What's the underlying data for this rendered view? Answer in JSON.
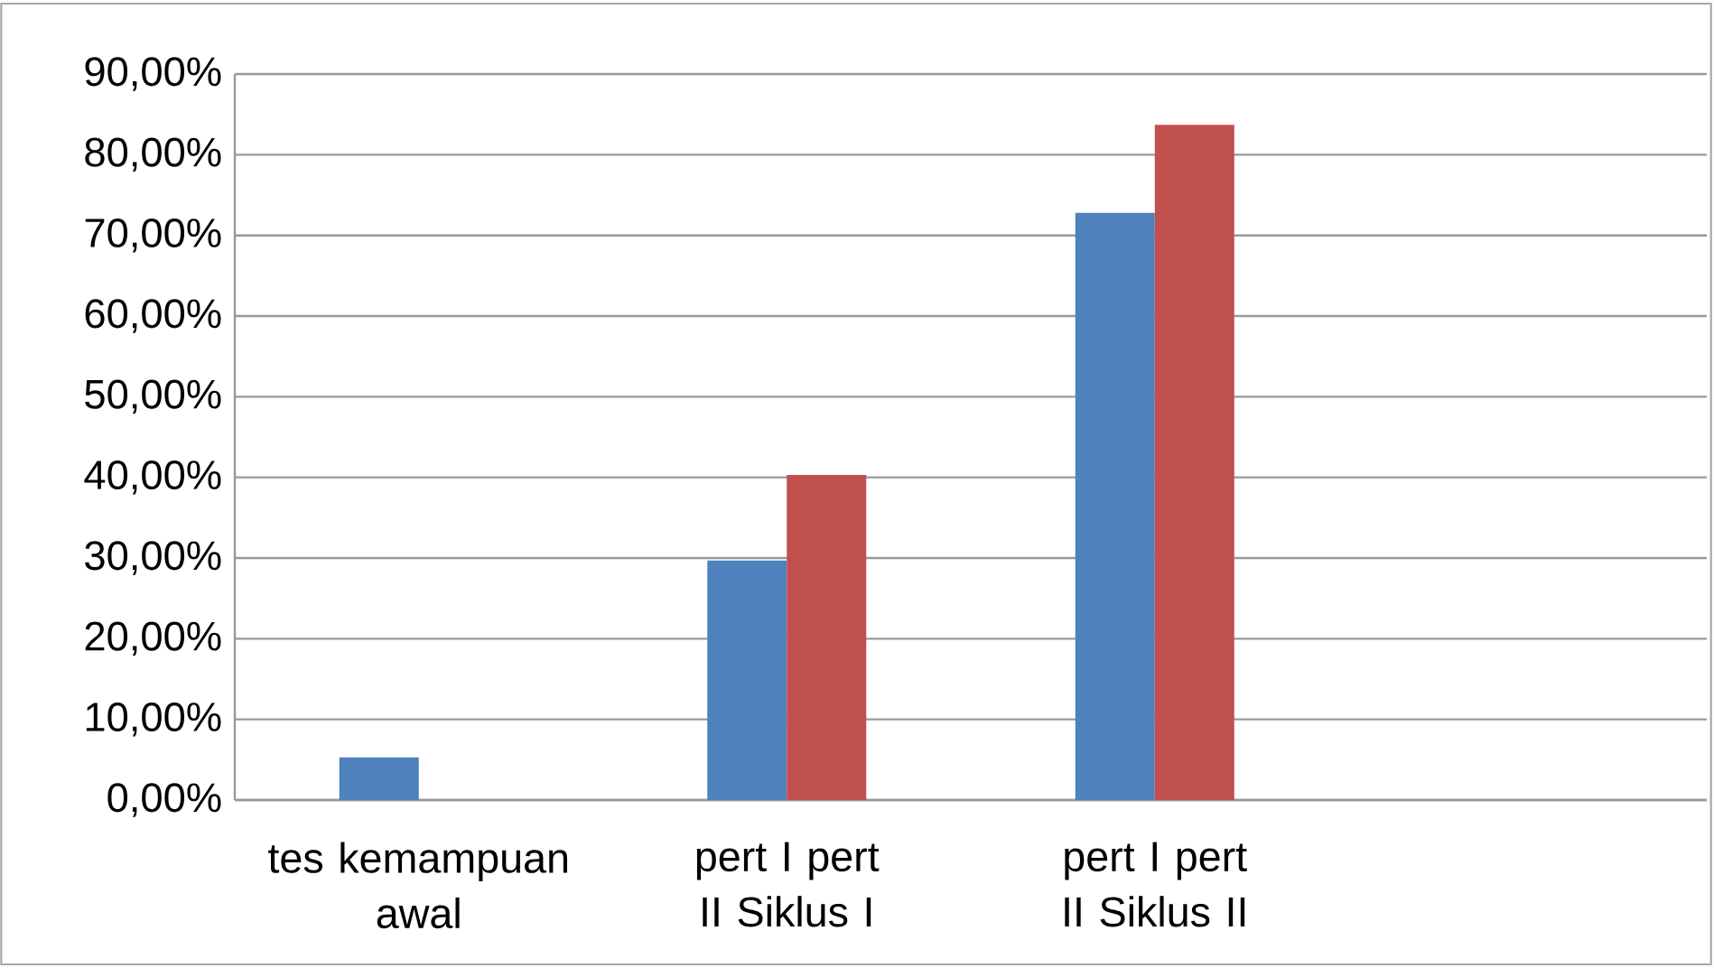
{
  "chart_data": {
    "type": "bar",
    "categories": [
      "tes kemampuan awal",
      "pert I  pert II Siklus I",
      "pert I pert II Siklus II",
      null
    ],
    "series": [
      {
        "color": "#4f81bd",
        "values": [
          5.3,
          29.7,
          72.8,
          null
        ]
      },
      {
        "color": "#c0504d",
        "values": [
          null,
          40.3,
          83.7,
          null
        ]
      }
    ],
    "ylim": [
      0,
      90
    ],
    "yticks": [
      {
        "value": 0,
        "label": "0,00%"
      },
      {
        "value": 10,
        "label": "10,00%"
      },
      {
        "value": 20,
        "label": "20,00%"
      },
      {
        "value": 30,
        "label": "30,00%"
      },
      {
        "value": 40,
        "label": "40,00%"
      },
      {
        "value": 50,
        "label": "50,00%"
      },
      {
        "value": 60,
        "label": "60,00%"
      },
      {
        "value": 70,
        "label": "70,00%"
      },
      {
        "value": 80,
        "label": "80,00%"
      },
      {
        "value": 90,
        "label": "90,00%"
      }
    ],
    "grid": "y"
  }
}
